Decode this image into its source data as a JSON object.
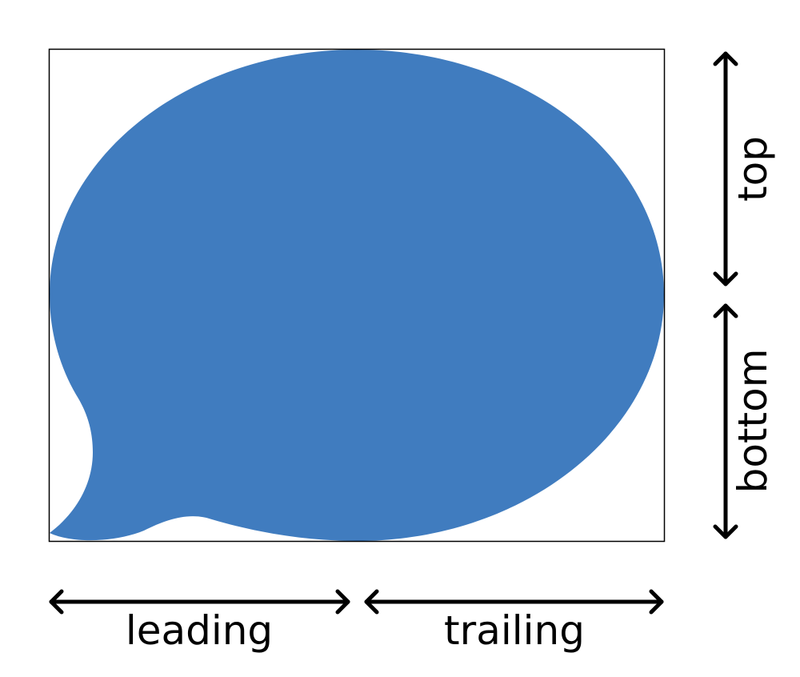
{
  "labels": {
    "leading": "leading",
    "trailing": "trailing",
    "top": "top",
    "bottom": "bottom"
  },
  "colors": {
    "bubble_fill": "#407cbf",
    "frame_stroke": "#000000",
    "arrow_stroke": "#000000",
    "background": "#ffffff"
  },
  "icons": {
    "bubble": "speech-bubble-icon",
    "arrows": "double-headed-arrow-icon"
  }
}
